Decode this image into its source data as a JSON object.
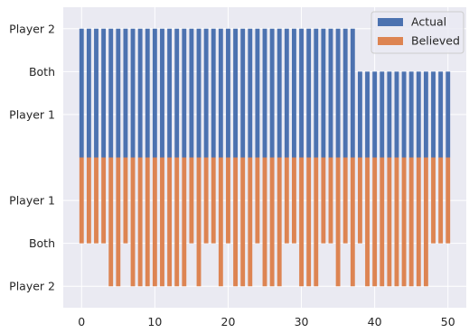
{
  "chart_data": {
    "type": "bar",
    "title": "",
    "xlabel": "",
    "ylabel": "",
    "xlim": [
      -2.5,
      52.5
    ],
    "ylim": [
      -3.5,
      3.5
    ],
    "baseline": 0,
    "x": [
      0,
      1,
      2,
      3,
      4,
      5,
      6,
      7,
      8,
      9,
      10,
      11,
      12,
      13,
      14,
      15,
      16,
      17,
      18,
      19,
      20,
      21,
      22,
      23,
      24,
      25,
      26,
      27,
      28,
      29,
      30,
      31,
      32,
      33,
      34,
      35,
      36,
      37,
      38,
      39,
      40,
      41,
      42,
      43,
      44,
      45,
      46,
      47,
      48,
      49,
      50
    ],
    "bar_width": 0.6,
    "x_ticks": [
      0,
      10,
      20,
      30,
      40,
      50
    ],
    "y_ticks": [
      {
        "value": 3,
        "label": "Player 2"
      },
      {
        "value": 2,
        "label": "Both"
      },
      {
        "value": 1,
        "label": "Player 1"
      },
      {
        "value": -1,
        "label": "Player 1"
      },
      {
        "value": -2,
        "label": "Both"
      },
      {
        "value": -3,
        "label": "Player 2"
      }
    ],
    "grid": true,
    "legend": {
      "position": "top-right"
    },
    "series": [
      {
        "name": "Actual",
        "color": "#4c72b0",
        "values": [
          3,
          3,
          3,
          3,
          3,
          3,
          3,
          3,
          3,
          3,
          3,
          3,
          3,
          3,
          3,
          3,
          3,
          3,
          3,
          3,
          3,
          3,
          3,
          3,
          3,
          3,
          3,
          3,
          3,
          3,
          3,
          3,
          3,
          3,
          3,
          3,
          3,
          3,
          2,
          2,
          2,
          2,
          2,
          2,
          2,
          2,
          2,
          2,
          2,
          2,
          2
        ]
      },
      {
        "name": "Believed",
        "color": "#dd8452",
        "values": [
          -2,
          -2,
          -2,
          -2,
          -3,
          -3,
          -2,
          -3,
          -3,
          -3,
          -3,
          -3,
          -3,
          -3,
          -3,
          -2,
          -3,
          -2,
          -2,
          -3,
          -2,
          -3,
          -3,
          -3,
          -2,
          -3,
          -3,
          -3,
          -2,
          -2,
          -3,
          -3,
          -3,
          -2,
          -2,
          -3,
          -2,
          -3,
          -2,
          -3,
          -3,
          -3,
          -3,
          -3,
          -3,
          -3,
          -3,
          -3,
          -2,
          -2,
          -2
        ]
      }
    ]
  }
}
